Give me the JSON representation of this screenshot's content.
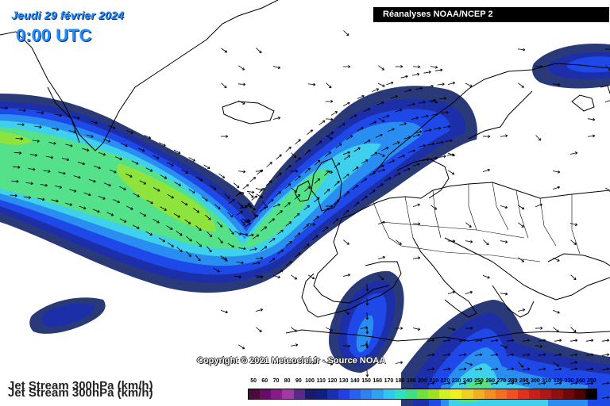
{
  "header": {
    "date": "Jeudi 29 février 2024",
    "time": "0:00 UTC"
  },
  "source": "Réanalyses NOAA/NCEP 2",
  "copyright": "Copyright © 2021 Meteociel.fr - Source NOAA",
  "title_line1": "Jet Stream 300hPa (km/h)",
  "title_line2": "Jet Stream 300hPa (km/h)",
  "legend": {
    "labels": [
      "50",
      "60",
      "70",
      "80",
      "90",
      "100",
      "110",
      "120",
      "130",
      "140",
      "150",
      "160",
      "170",
      "180",
      "190",
      "200",
      "210",
      "220",
      "230",
      "240",
      "250",
      "260",
      "270",
      "280",
      "290",
      "300",
      "310",
      "320",
      "330",
      "340",
      "350"
    ],
    "colors": [
      "#4a0a3a",
      "#6a0a6a",
      "#8a1a8a",
      "#a03aa0",
      "#5a2a8a",
      "#1a1a6a",
      "#102080",
      "#1830b0",
      "#2040e0",
      "#2a60f0",
      "#3080f0",
      "#30a0f0",
      "#30c8f0",
      "#30e0c0",
      "#40e080",
      "#70e040",
      "#a0e020",
      "#d0f020",
      "#f0f020",
      "#f0d020",
      "#f0b020",
      "#f09020",
      "#f07020",
      "#f05020",
      "#e03020",
      "#c82018",
      "#b01818",
      "#901010",
      "#700808",
      "#500000",
      "#000000"
    ],
    "unit": "km/h"
  },
  "map": {
    "background_color": "#ffffff",
    "jet_colors": {
      "outer": "#2a3a78",
      "band1": "#1d2fa8",
      "band2": "#1e48e8",
      "band3": "#2a8df2",
      "band4": "#3ed0ec",
      "core": "#55e08a",
      "peak": "#8ee43c"
    }
  }
}
